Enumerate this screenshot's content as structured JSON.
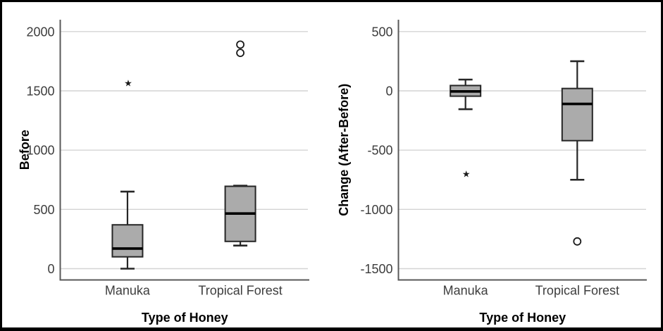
{
  "figure": {
    "background": "#ffffff",
    "border_color": "#000000"
  },
  "chart_data": [
    {
      "type": "boxplot",
      "title": "",
      "xlabel": "Type of Honey",
      "ylabel": "Before",
      "categories": [
        "Manuka",
        "Tropical Forest"
      ],
      "yticks": [
        0,
        500,
        1000,
        1500,
        2000
      ],
      "ylim": [
        -95,
        2100
      ],
      "grid": "horizontal",
      "legend": "none",
      "series": [
        {
          "category": "Manuka",
          "whisker_low": 0,
          "q1": 100,
          "median": 170,
          "q3": 370,
          "whisker_high": 650,
          "outliers_extreme": [
            1565
          ],
          "outliers_mild": []
        },
        {
          "category": "Tropical Forest",
          "whisker_low": 195,
          "q1": 230,
          "median": 465,
          "q3": 695,
          "whisker_high": 700,
          "outliers_extreme": [],
          "outliers_mild": [
            1820,
            1890
          ]
        }
      ]
    },
    {
      "type": "boxplot",
      "title": "",
      "xlabel": "Type of Honey",
      "ylabel": "Change (After-Before)",
      "categories": [
        "Manuka",
        "Tropical Forest"
      ],
      "yticks": [
        -1500,
        -1000,
        -500,
        0,
        500
      ],
      "ylim": [
        -1595,
        600
      ],
      "grid": "horizontal",
      "legend": "none",
      "series": [
        {
          "category": "Manuka",
          "whisker_low": -155,
          "q1": -45,
          "median": -5,
          "q3": 45,
          "whisker_high": 95,
          "outliers_extreme": [
            -700
          ],
          "outliers_mild": []
        },
        {
          "category": "Tropical Forest",
          "whisker_low": -750,
          "q1": -420,
          "median": -110,
          "q3": 20,
          "whisker_high": 250,
          "outliers_extreme": [],
          "outliers_mild": [
            -1270
          ]
        }
      ]
    }
  ],
  "colors": {
    "box_fill": "#ababab",
    "box_stroke": "#262626",
    "median": "#000000",
    "whisker": "#262626",
    "gridline": "#d4d4d4",
    "axis": "#595959",
    "tick_label": "#3d3d3d",
    "axis_title": "#000000",
    "outlier": "#1a1a1a"
  },
  "symbols": {
    "extreme_outlier": "★",
    "mild_outlier": "circle"
  }
}
